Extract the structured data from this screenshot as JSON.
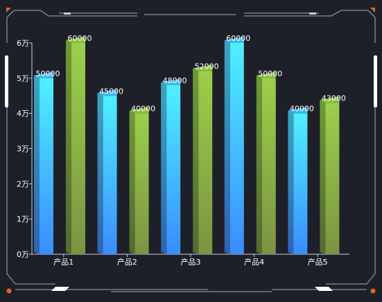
{
  "colors": {
    "background": "#1d2029",
    "frame": "#8a8f99",
    "accent": "#e0662a",
    "cyan_top": "#4ff0ff",
    "cyan_bottom": "#3a8cff",
    "green_top": "#9ccf4a",
    "green_bottom": "#7a9443",
    "text": "#ffffff"
  },
  "chart_data": {
    "type": "bar",
    "style": "3d-bars",
    "categories": [
      "产品1",
      "产品2",
      "产品3",
      "产品4",
      "产品5"
    ],
    "series": [
      {
        "color": "cyan",
        "values": [
          50000,
          45000,
          48000,
          60000,
          40000
        ]
      },
      {
        "color": "green",
        "values": [
          60000,
          40000,
          52000,
          50000,
          43000
        ]
      }
    ],
    "ylim": [
      0,
      60000
    ],
    "yticks": [
      {
        "value": 0,
        "label": "0万"
      },
      {
        "value": 10000,
        "label": "1万"
      },
      {
        "value": 20000,
        "label": "2万"
      },
      {
        "value": 30000,
        "label": "3万"
      },
      {
        "value": 40000,
        "label": "4万"
      },
      {
        "value": 50000,
        "label": "5万"
      },
      {
        "value": 60000,
        "label": "6万"
      }
    ],
    "data_labels": true,
    "grid": false,
    "legend": "none"
  }
}
